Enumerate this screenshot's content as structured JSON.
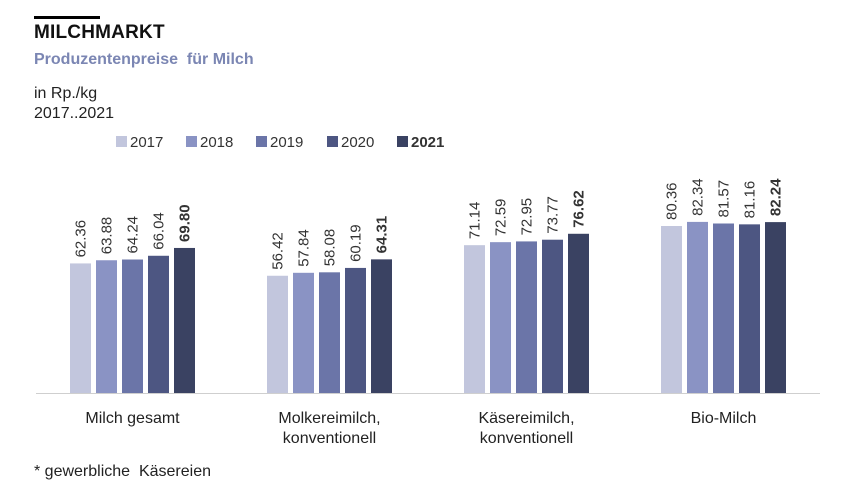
{
  "header": {
    "title": "MILCHMARKT",
    "subtitle": "Produzentenpreise  für Milch",
    "unit": "in Rp./kg",
    "period": "2017..2021"
  },
  "footnote": "* gewerbliche  Käsereien",
  "colors": {
    "2017": "#c2c6dd",
    "2018": "#8a93c4",
    "2019": "#6b75a8",
    "2020": "#4d5682",
    "2021": "#3a4262",
    "axis": "#cfcfcf",
    "text": "#333333"
  },
  "chart_data": {
    "type": "bar",
    "title": "Produzentenpreise  für Milch",
    "ylabel": "in Rp./kg",
    "ylim": [
      0,
      90
    ],
    "legend_position": "top",
    "categories": [
      [
        "Milch gesamt"
      ],
      [
        "Molkereimilch,",
        "konventionell"
      ],
      [
        "Käsereimilch,",
        "konventionell"
      ],
      [
        "Bio-Milch"
      ]
    ],
    "series": [
      {
        "name": "2017",
        "values": [
          62.36,
          56.42,
          71.14,
          80.36
        ],
        "labels": [
          "62.36",
          "56.42",
          "71.14",
          "80.36"
        ]
      },
      {
        "name": "2018",
        "values": [
          63.88,
          57.84,
          72.59,
          82.34
        ],
        "labels": [
          "63.88",
          "57.84",
          "72.59",
          "82.34"
        ]
      },
      {
        "name": "2019",
        "values": [
          64.24,
          58.08,
          72.95,
          81.57
        ],
        "labels": [
          "64.24",
          "58.08",
          "72.95",
          "81.57"
        ]
      },
      {
        "name": "2020",
        "values": [
          66.04,
          60.19,
          73.77,
          81.16
        ],
        "labels": [
          "66.04",
          "60.19",
          "73.77",
          "81.16"
        ]
      },
      {
        "name": "2021",
        "values": [
          69.8,
          64.31,
          76.62,
          82.24
        ],
        "labels": [
          "69.80",
          "64.31",
          "76.62",
          "82.24"
        ],
        "bold": true
      }
    ]
  }
}
